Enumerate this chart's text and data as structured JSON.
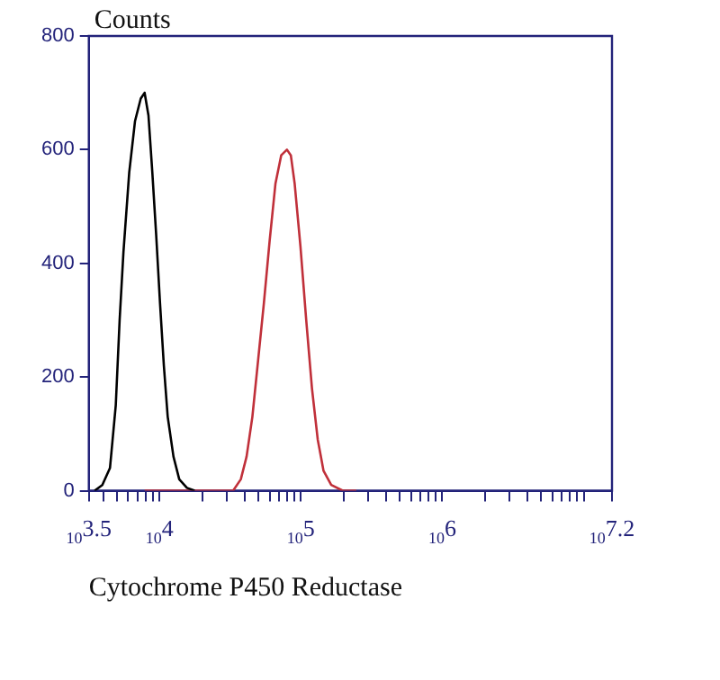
{
  "chart_data": {
    "type": "line",
    "ylabel": "Counts",
    "xlabel": "Cytochrome P450 Reductase",
    "log": "x",
    "grid": false,
    "legend": false,
    "marker": "none",
    "line_style": "solid",
    "xlim": [
      3162.3,
      15848932
    ],
    "xticks": [
      {
        "value": 3162.3,
        "label": "10$^{3.5}$"
      },
      {
        "value": 4000,
        "label": null
      },
      {
        "value": 5000,
        "label": null
      },
      {
        "value": 6000,
        "label": null
      },
      {
        "value": 7000,
        "label": null
      },
      {
        "value": 8000,
        "label": null
      },
      {
        "value": 9000,
        "label": null
      },
      {
        "value": 10000,
        "label": "10$^{4}$"
      },
      {
        "value": 20000,
        "label": null
      },
      {
        "value": 30000,
        "label": null
      },
      {
        "value": 40000,
        "label": null
      },
      {
        "value": 50000,
        "label": null
      },
      {
        "value": 60000,
        "label": null
      },
      {
        "value": 70000,
        "label": null
      },
      {
        "value": 80000,
        "label": null
      },
      {
        "value": 90000,
        "label": null
      },
      {
        "value": 100000,
        "label": "10$^{5}$"
      },
      {
        "value": 200000,
        "label": null
      },
      {
        "value": 300000,
        "label": null
      },
      {
        "value": 400000,
        "label": null
      },
      {
        "value": 500000,
        "label": null
      },
      {
        "value": 600000,
        "label": null
      },
      {
        "value": 700000,
        "label": null
      },
      {
        "value": 800000,
        "label": null
      },
      {
        "value": 900000,
        "label": null
      },
      {
        "value": 1000000,
        "label": "10$^{6}$"
      },
      {
        "value": 2000000,
        "label": null
      },
      {
        "value": 3000000,
        "label": null
      },
      {
        "value": 4000000,
        "label": null
      },
      {
        "value": 5000000,
        "label": null
      },
      {
        "value": 6000000,
        "label": null
      },
      {
        "value": 7000000,
        "label": null
      },
      {
        "value": 8000000,
        "label": null
      },
      {
        "value": 9000000,
        "label": null
      },
      {
        "value": 10000000,
        "label": null
      },
      {
        "value": 15848932,
        "label": "10$^{7.2}$"
      }
    ],
    "ylim": [
      0,
      800
    ],
    "yticks": [
      0,
      200,
      400,
      600,
      800
    ],
    "series": [
      {
        "color": "#000000",
        "x": [
          3474,
          3938,
          4463,
          4903,
          5221,
          5557,
          6105,
          6706,
          7367,
          7845,
          8353,
          8892,
          9468,
          10079,
          10731,
          11424,
          12549,
          13788,
          15625,
          17716
        ],
        "values": [
          0,
          10,
          40,
          150,
          300,
          420,
          560,
          650,
          690,
          700,
          660,
          560,
          450,
          330,
          220,
          130,
          60,
          20,
          5,
          0
        ]
      },
      {
        "color": "#c0303a",
        "x": [
          7845,
          33150,
          37570,
          41270,
          45360,
          49820,
          54720,
          60110,
          66020,
          72530,
          79640,
          84850,
          90330,
          99220,
          109000,
          119700,
          131500,
          144500,
          163800,
          197600,
          246200
        ],
        "values": [
          0,
          0,
          20,
          60,
          130,
          230,
          330,
          440,
          540,
          590,
          600,
          590,
          540,
          430,
          300,
          180,
          90,
          35,
          10,
          0,
          0
        ]
      }
    ]
  }
}
